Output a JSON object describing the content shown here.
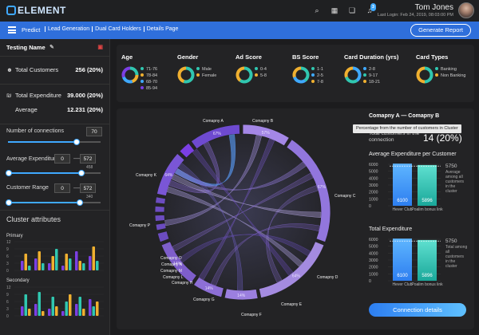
{
  "app": {
    "logo": "ELEMENT"
  },
  "user": {
    "name": "Tom Jones",
    "last_login": "Last Login: Feb 24, 2019, 08:03:00 PM",
    "notif_count": "3"
  },
  "nav": {
    "predict": "Predict",
    "breadcrumbs": [
      "Lead Generation",
      "Dual Card Holders",
      "Details Page"
    ],
    "generate_label": "Generate Report"
  },
  "sidebar": {
    "title": "Testing Name",
    "total_customers_label": "Total Customers",
    "total_customers_value": "256 (20%)",
    "total_expenditure_label": "Total Expenditure",
    "total_expenditure_value": "39.000 (20%)",
    "average_label": "Average",
    "average_value": "12.231 (20%)",
    "connections_label": "Number of connections",
    "connections_value": "70",
    "avg_exp_label": "Average Expenditure",
    "avg_exp_min": "0",
    "avg_exp_max": "572",
    "avg_exp_tick": "458",
    "cust_range_label": "Customer Range",
    "cust_range_min": "0",
    "cust_range_max": "572",
    "cust_range_tick": "340",
    "cluster_title": "Cluster attributes",
    "primary_label": "Primary",
    "secondary_label": "Secondary",
    "yticks": [
      "12",
      "9",
      "6",
      "3",
      "0"
    ],
    "primary_bars": [
      [
        4,
        7,
        2
      ],
      [
        5,
        8,
        3
      ],
      [
        3,
        6,
        9
      ],
      [
        2,
        7,
        5
      ],
      [
        8,
        4,
        3
      ],
      [
        6,
        10,
        4
      ]
    ],
    "secondary_bars": [
      [
        4,
        9,
        3
      ],
      [
        5,
        10,
        2
      ],
      [
        3,
        8,
        4
      ],
      [
        2,
        6,
        9
      ],
      [
        5,
        8,
        3
      ],
      [
        7,
        4,
        6
      ]
    ],
    "bar_colors": [
      "#7b3fe4",
      "#f0b030",
      "#30c7b0"
    ],
    "sec_bar_colors": [
      "#7b3fe4",
      "#30c7b0",
      "#f0b030"
    ]
  },
  "cards": [
    {
      "title": "Age",
      "legend": [
        [
          "71-76",
          "#30c7b0"
        ],
        [
          "78-84",
          "#f0b030"
        ],
        [
          "68-70",
          "#3fa9ff"
        ],
        [
          "85-94",
          "#7b3fe4"
        ]
      ],
      "slices": [
        0.25,
        0.2,
        0.25,
        0.3
      ]
    },
    {
      "title": "Gender",
      "legend": [
        [
          "Male",
          "#30c7b0"
        ],
        [
          "Female",
          "#f0b030"
        ]
      ],
      "slices": [
        0.55,
        0.45
      ]
    },
    {
      "title": "Ad Score",
      "legend": [
        [
          "0-4",
          "#30c7b0"
        ],
        [
          "5-8",
          "#f0b030"
        ]
      ],
      "slices": [
        0.6,
        0.4
      ]
    },
    {
      "title": "BS Score",
      "legend": [
        [
          "1-1",
          "#30c7b0"
        ],
        [
          "2-5",
          "#3fa9ff"
        ],
        [
          "7-8",
          "#f0b030"
        ]
      ],
      "slices": [
        0.4,
        0.3,
        0.3
      ]
    },
    {
      "title": "Card Duration (yrs)",
      "legend": [
        [
          "2-8",
          "#3fa9ff"
        ],
        [
          "9-17",
          "#30c7b0"
        ],
        [
          "18-21",
          "#f0b030"
        ]
      ],
      "slices": [
        0.4,
        0.3,
        0.3
      ]
    },
    {
      "title": "Card Types",
      "legend": [
        [
          "Banking",
          "#30c7b0"
        ],
        [
          "Non Banking",
          "#f0b030"
        ]
      ],
      "slices": [
        0.5,
        0.5
      ]
    }
  ],
  "chord": {
    "labels": [
      "Comapny A",
      "Comapny B",
      "Comapny C",
      "Comapny D",
      "Comapny E",
      "Comapny F",
      "Comapny G",
      "Comapny H",
      "Comapny L",
      "Comapny M",
      "Comapny N",
      "Comapny O",
      "Comapny P",
      "Comapny K"
    ],
    "pct": [
      "67%",
      "57%",
      "67%",
      "64%",
      "14%",
      "14%",
      "14%",
      "64%"
    ]
  },
  "right": {
    "title": "Comapny A — Comapny B",
    "tooltip": "Percentage from the number of customers in Cluster",
    "conn_label": "Total customers in the connection",
    "conn_value": "14 (20%)",
    "avg_title": "Average Expenditure per Customer",
    "exp_title": "Total Expenditure",
    "yticks": [
      "6000",
      "5000",
      "4000",
      "3000",
      "2000",
      "1000",
      "0"
    ],
    "avg_bars": [
      {
        "label": "Hever Club",
        "value": 6100
      },
      {
        "label": "Poalim bonus link",
        "value": 5896
      }
    ],
    "avg_side_value": "5750",
    "avg_side_text": "Average among all customers in the cluster",
    "exp_bars": [
      {
        "label": "Hever Club",
        "value": 6100
      },
      {
        "label": "Poalim bonus link",
        "value": 5896
      }
    ],
    "exp_side_value": "5750",
    "exp_side_text": "Total among all customers in the cluster",
    "bar_value_labels": [
      "6100",
      "5896",
      "6100",
      "5896"
    ],
    "connection_btn": "Connection details"
  }
}
